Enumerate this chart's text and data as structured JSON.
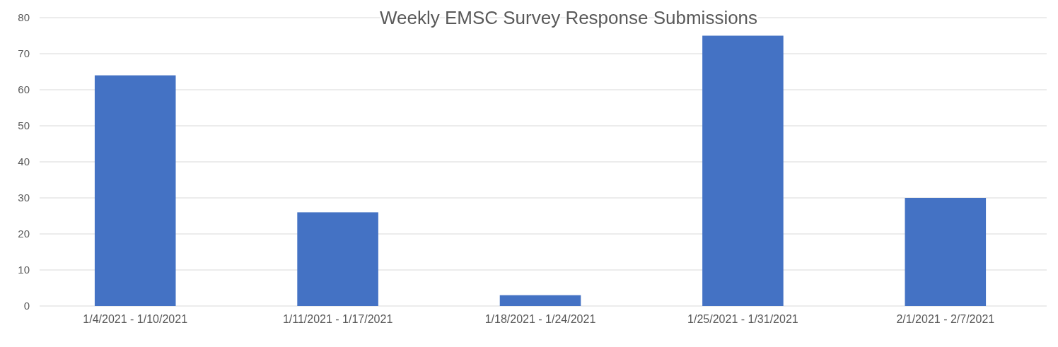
{
  "chart_data": {
    "type": "bar",
    "title": "Weekly EMSC Survey Response Submissions",
    "categories": [
      "1/4/2021 - 1/10/2021",
      "1/11/2021 - 1/17/2021",
      "1/18/2021 - 1/24/2021",
      "1/25/2021 - 1/31/2021",
      "2/1/2021 - 2/7/2021"
    ],
    "values": [
      64,
      26,
      3,
      75,
      30
    ],
    "color": "#4472c4",
    "ylim": [
      0,
      80
    ],
    "yticks": [
      0,
      10,
      20,
      30,
      40,
      50,
      60,
      70,
      80
    ],
    "grid": "y"
  }
}
